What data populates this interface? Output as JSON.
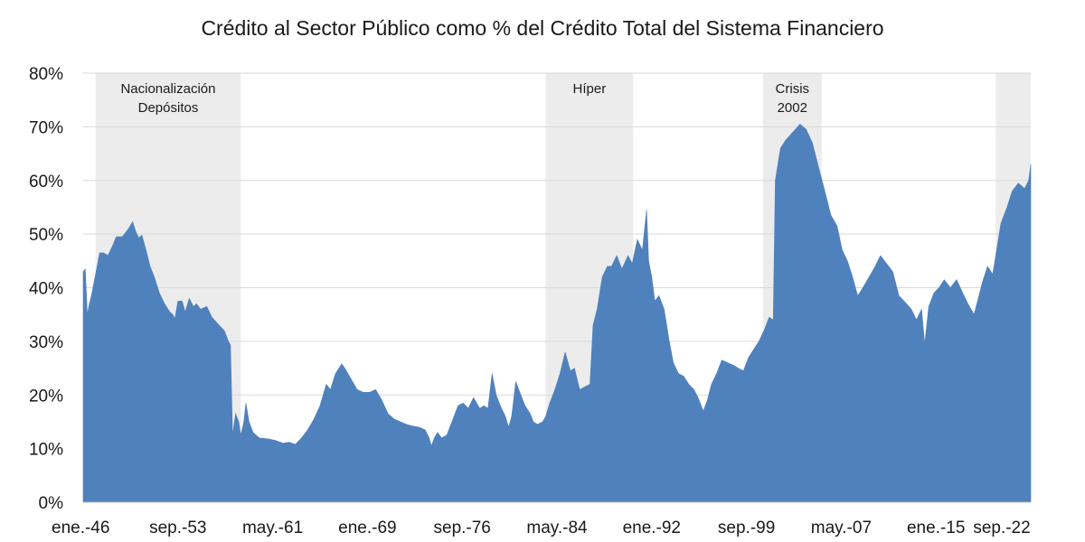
{
  "chart_data": {
    "type": "area",
    "title": "Crédito al Sector Público como % del Crédito Total del Sistema Financiero",
    "xlabel": "",
    "ylabel": "",
    "ylim": [
      0,
      80
    ],
    "y_ticks": [
      "0%",
      "10%",
      "20%",
      "30%",
      "40%",
      "50%",
      "60%",
      "70%",
      "80%"
    ],
    "x_range": [
      "1946-01",
      "2022-09"
    ],
    "x_ticks": [
      {
        "date": "1946-01",
        "label": "ene.-46"
      },
      {
        "date": "1953-09",
        "label": "sep.-53"
      },
      {
        "date": "1961-05",
        "label": "may.-61"
      },
      {
        "date": "1969-01",
        "label": "ene.-69"
      },
      {
        "date": "1976-09",
        "label": "sep.-76"
      },
      {
        "date": "1984-05",
        "label": "may.-84"
      },
      {
        "date": "1992-01",
        "label": "ene.-92"
      },
      {
        "date": "1999-09",
        "label": "sep.-99"
      },
      {
        "date": "2007-05",
        "label": "may.-07"
      },
      {
        "date": "2015-01",
        "label": "ene.-15"
      },
      {
        "date": "2022-09",
        "label": "sep.-22"
      }
    ],
    "grid": true,
    "color": "#4f81bd",
    "band_color": "#ececec",
    "bands": [
      {
        "start": "1947-01",
        "end": "1958-10",
        "label_lines": [
          "Nacionalización",
          "Depósitos"
        ]
      },
      {
        "start": "1983-06",
        "end": "1990-07",
        "label_lines": [
          "Híper"
        ]
      },
      {
        "start": "2001-01",
        "end": "2005-10",
        "label_lines": [
          "Crisis",
          "2002"
        ]
      },
      {
        "start": "2019-11",
        "end": "2022-09",
        "label_lines": []
      }
    ],
    "series": [
      {
        "points": [
          [
            "1946-01",
            43
          ],
          [
            "1946-03",
            43.5
          ],
          [
            "1946-05",
            35
          ],
          [
            "1946-07",
            37
          ],
          [
            "1946-09",
            38.5
          ],
          [
            "1947-01",
            42.5
          ],
          [
            "1947-05",
            46.5
          ],
          [
            "1947-09",
            46.5
          ],
          [
            "1948-01",
            46
          ],
          [
            "1948-06",
            48
          ],
          [
            "1948-09",
            49.5
          ],
          [
            "1949-03",
            49.5
          ],
          [
            "1949-09",
            51
          ],
          [
            "1950-01",
            52.3
          ],
          [
            "1950-04",
            50.5
          ],
          [
            "1950-07",
            49.3
          ],
          [
            "1950-10",
            49.8
          ],
          [
            "1951-02",
            47
          ],
          [
            "1951-06",
            44
          ],
          [
            "1951-10",
            42
          ],
          [
            "1952-03",
            39
          ],
          [
            "1952-08",
            37
          ],
          [
            "1953-01",
            35.5
          ],
          [
            "1953-04",
            35
          ],
          [
            "1953-06",
            34.2
          ],
          [
            "1953-09",
            37.5
          ],
          [
            "1954-01",
            37.5
          ],
          [
            "1954-04",
            35.5
          ],
          [
            "1954-08",
            38
          ],
          [
            "1954-12",
            36.5
          ],
          [
            "1955-03",
            37
          ],
          [
            "1955-07",
            36
          ],
          [
            "1956-01",
            36.5
          ],
          [
            "1956-06",
            34.5
          ],
          [
            "1957-01",
            33
          ],
          [
            "1957-06",
            32
          ],
          [
            "1957-10",
            30
          ],
          [
            "1957-12",
            29.3
          ],
          [
            "1958-02",
            12.5
          ],
          [
            "1958-05",
            16.5
          ],
          [
            "1958-08",
            15
          ],
          [
            "1958-10",
            12.5
          ],
          [
            "1959-01",
            15
          ],
          [
            "1959-03",
            18.5
          ],
          [
            "1959-06",
            15
          ],
          [
            "1959-10",
            13
          ],
          [
            "1960-04",
            12
          ],
          [
            "1961-01",
            11.8
          ],
          [
            "1961-08",
            11.5
          ],
          [
            "1962-03",
            11
          ],
          [
            "1962-09",
            11.2
          ],
          [
            "1963-03",
            10.8
          ],
          [
            "1963-09",
            12
          ],
          [
            "1964-03",
            13.5
          ],
          [
            "1964-09",
            15.5
          ],
          [
            "1965-03",
            18
          ],
          [
            "1965-09",
            22
          ],
          [
            "1966-01",
            21
          ],
          [
            "1966-06",
            24
          ],
          [
            "1966-12",
            25.8
          ],
          [
            "1967-03",
            25
          ],
          [
            "1967-09",
            23
          ],
          [
            "1968-03",
            21
          ],
          [
            "1968-09",
            20.5
          ],
          [
            "1969-03",
            20.5
          ],
          [
            "1969-09",
            21
          ],
          [
            "1970-03",
            19
          ],
          [
            "1970-09",
            16.5
          ],
          [
            "1971-03",
            15.5
          ],
          [
            "1971-09",
            15
          ],
          [
            "1972-03",
            14.5
          ],
          [
            "1972-09",
            14.2
          ],
          [
            "1973-03",
            14
          ],
          [
            "1973-09",
            13.5
          ],
          [
            "1974-01",
            12
          ],
          [
            "1974-03",
            10.5
          ],
          [
            "1974-06",
            12
          ],
          [
            "1974-09",
            13
          ],
          [
            "1975-01",
            12
          ],
          [
            "1975-06",
            12.5
          ],
          [
            "1976-01",
            16
          ],
          [
            "1976-05",
            18
          ],
          [
            "1976-10",
            18.5
          ],
          [
            "1977-03",
            17.5
          ],
          [
            "1977-08",
            19.5
          ],
          [
            "1978-02",
            17.5
          ],
          [
            "1978-06",
            18
          ],
          [
            "1978-10",
            17.5
          ],
          [
            "1979-02",
            24
          ],
          [
            "1979-06",
            20
          ],
          [
            "1979-10",
            18
          ],
          [
            "1980-03",
            16
          ],
          [
            "1980-06",
            14
          ],
          [
            "1980-09",
            16
          ],
          [
            "1981-01",
            22.5
          ],
          [
            "1981-06",
            20
          ],
          [
            "1981-10",
            18
          ],
          [
            "1982-03",
            16.5
          ],
          [
            "1982-06",
            15
          ],
          [
            "1982-10",
            14.5
          ],
          [
            "1983-03",
            15
          ],
          [
            "1983-06",
            16
          ],
          [
            "1983-10",
            18.5
          ],
          [
            "1984-03",
            21
          ],
          [
            "1984-08",
            24
          ],
          [
            "1985-01",
            28
          ],
          [
            "1985-06",
            24.5
          ],
          [
            "1985-10",
            25
          ],
          [
            "1986-03",
            21
          ],
          [
            "1986-08",
            21.5
          ],
          [
            "1987-01",
            22
          ],
          [
            "1987-04",
            33
          ],
          [
            "1987-08",
            36
          ],
          [
            "1988-01",
            42
          ],
          [
            "1988-06",
            44
          ],
          [
            "1988-10",
            44
          ],
          [
            "1989-03",
            46
          ],
          [
            "1989-08",
            43.5
          ],
          [
            "1990-02",
            46
          ],
          [
            "1990-06",
            44.5
          ],
          [
            "1990-11",
            49
          ],
          [
            "1991-04",
            47
          ],
          [
            "1991-08",
            54.5
          ],
          [
            "1991-10",
            45
          ],
          [
            "1992-01",
            42
          ],
          [
            "1992-04",
            37.5
          ],
          [
            "1992-08",
            38.5
          ],
          [
            "1993-01",
            36
          ],
          [
            "1993-06",
            30
          ],
          [
            "1993-10",
            26
          ],
          [
            "1994-03",
            24
          ],
          [
            "1994-08",
            23.5
          ],
          [
            "1995-01",
            22
          ],
          [
            "1995-06",
            21
          ],
          [
            "1995-10",
            19.5
          ],
          [
            "1996-03",
            17
          ],
          [
            "1996-07",
            19
          ],
          [
            "1996-11",
            22
          ],
          [
            "1997-04",
            24
          ],
          [
            "1997-09",
            26.5
          ],
          [
            "1998-03",
            26
          ],
          [
            "1998-09",
            25.5
          ],
          [
            "1999-01",
            25
          ],
          [
            "1999-06",
            24.5
          ],
          [
            "1999-11",
            27
          ],
          [
            "2000-04",
            28.5
          ],
          [
            "2000-09",
            30
          ],
          [
            "2001-02",
            32
          ],
          [
            "2001-07",
            34.5
          ],
          [
            "2001-11",
            34
          ],
          [
            "2002-01",
            60
          ],
          [
            "2002-06",
            66
          ],
          [
            "2002-11",
            67.5
          ],
          [
            "2003-06",
            69
          ],
          [
            "2004-01",
            70.5
          ],
          [
            "2004-07",
            69.5
          ],
          [
            "2005-01",
            67
          ],
          [
            "2005-07",
            62.5
          ],
          [
            "2006-01",
            58
          ],
          [
            "2006-07",
            53.5
          ],
          [
            "2007-01",
            51.5
          ],
          [
            "2007-06",
            47
          ],
          [
            "2007-11",
            45
          ],
          [
            "2008-04",
            42
          ],
          [
            "2008-09",
            38.5
          ],
          [
            "2009-02",
            40
          ],
          [
            "2009-08",
            42
          ],
          [
            "2010-02",
            44
          ],
          [
            "2010-07",
            46
          ],
          [
            "2011-01",
            44.5
          ],
          [
            "2011-07",
            43
          ],
          [
            "2012-01",
            38.5
          ],
          [
            "2012-06",
            37.5
          ],
          [
            "2013-01",
            36
          ],
          [
            "2013-06",
            34
          ],
          [
            "2013-11",
            36
          ],
          [
            "2014-02",
            29.5
          ],
          [
            "2014-06",
            36.5
          ],
          [
            "2014-11",
            39
          ],
          [
            "2015-04",
            40
          ],
          [
            "2015-09",
            41.5
          ],
          [
            "2016-03",
            40
          ],
          [
            "2016-09",
            41.5
          ],
          [
            "2017-03",
            39
          ],
          [
            "2017-08",
            37
          ],
          [
            "2018-02",
            35
          ],
          [
            "2018-06",
            38
          ],
          [
            "2018-10",
            41
          ],
          [
            "2019-03",
            44
          ],
          [
            "2019-08",
            42.5
          ],
          [
            "2019-11",
            46
          ],
          [
            "2020-04",
            52
          ],
          [
            "2020-10",
            55
          ],
          [
            "2021-03",
            58
          ],
          [
            "2021-09",
            59.5
          ],
          [
            "2022-03",
            58.5
          ],
          [
            "2022-07",
            60
          ],
          [
            "2022-09",
            63
          ]
        ]
      }
    ]
  }
}
